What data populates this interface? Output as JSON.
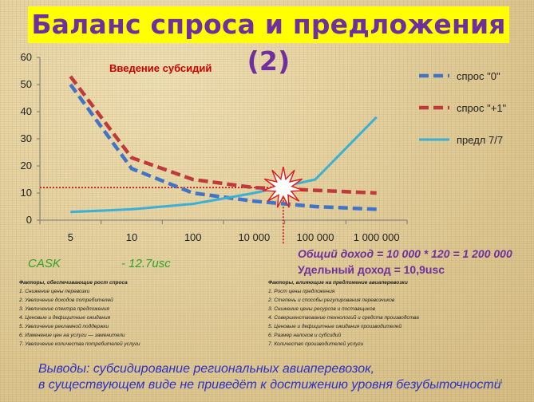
{
  "slide": {
    "title": "Баланс спроса и предложения (2)",
    "page_number": "14"
  },
  "colors": {
    "title_bg": "#ffff00",
    "title_text": "#6f2f9f",
    "demand0": "#3f74c8",
    "demand1": "#c0393b",
    "supply": "#3ab0d6",
    "subsidy_line": "#cc0000",
    "income_text": "#6f2f9f",
    "cask_text": "#2aa52a",
    "conclusion_text": "#2b30c8"
  },
  "chart_data": {
    "type": "line",
    "title": "",
    "xlabel": "",
    "ylabel": "",
    "categories": [
      "5",
      "10",
      "100",
      "10 000",
      "100 000",
      "1 000 000"
    ],
    "x": [
      5,
      10,
      100,
      10000,
      100000,
      1000000
    ],
    "x_scale": "log",
    "ylim": [
      0,
      60
    ],
    "y_ticks": [
      0,
      10,
      20,
      30,
      40,
      50,
      60
    ],
    "grid": false,
    "legend_position": "right",
    "series": [
      {
        "name": "спрос \"0\"",
        "style": "dashed",
        "color": "#3f74c8",
        "points": [
          [
            5,
            50
          ],
          [
            10,
            19
          ],
          [
            100,
            10
          ],
          [
            10000,
            7
          ],
          [
            100000,
            5
          ],
          [
            1000000,
            4
          ]
        ]
      },
      {
        "name": "спрос \"+1\"",
        "style": "dashed",
        "color": "#c0393b",
        "points": [
          [
            5,
            53
          ],
          [
            10,
            23
          ],
          [
            100,
            15
          ],
          [
            10000,
            12
          ],
          [
            100000,
            11
          ],
          [
            1000000,
            10
          ]
        ]
      },
      {
        "name": "предл 7/7",
        "style": "solid",
        "color": "#3ab0d6",
        "points": [
          [
            5,
            3
          ],
          [
            10,
            4
          ],
          [
            100,
            6
          ],
          [
            10000,
            10
          ],
          [
            100000,
            15
          ],
          [
            1000000,
            38
          ]
        ]
      }
    ],
    "annotations": {
      "subsidy_label": "Введение  субсидий",
      "equilibrium": {
        "x": 30000,
        "y": 12
      }
    }
  },
  "cask": {
    "label": "CASK",
    "value": "- 12.7usc"
  },
  "income": {
    "total": "Общий доход = 10 000 * 120 = 1 200 000",
    "unit": "Удельный доход  = 10,9usc"
  },
  "demand_factors": {
    "heading": "Факторы, обеспечивающие рост спроса",
    "items": [
      "1. Снижение цены перевозки",
      "2. Увеличение доходов потребителей",
      "3. Увеличение спектра предложения",
      "4. Ценовые и дефицитные ожидания",
      "5. Увеличение рекламной поддержки",
      "6. Изменение цен на услуги — заменители",
      "7. Увеличение количества потребителей услуги"
    ]
  },
  "supply_factors": {
    "heading": "Факторы, влияющие на предложение авиаперевозки",
    "items": [
      "1. Рост цены предложения",
      "2. Степень и способы регулирования перевозчиков",
      "3. Снижение цены ресурсов и поставщиков",
      "4. Совершенствование технологий и средств производства",
      "5. Ценовые и дефицитные ожидания производителей",
      "6. Размер налогов и субсидий",
      "7. Количество производителей услуги"
    ]
  },
  "conclusion": {
    "line1": "Выводы:  субсидирование региональных авиаперевозок,",
    "line2": " в существующем виде не приведёт к достижению уровня безубыточности"
  }
}
